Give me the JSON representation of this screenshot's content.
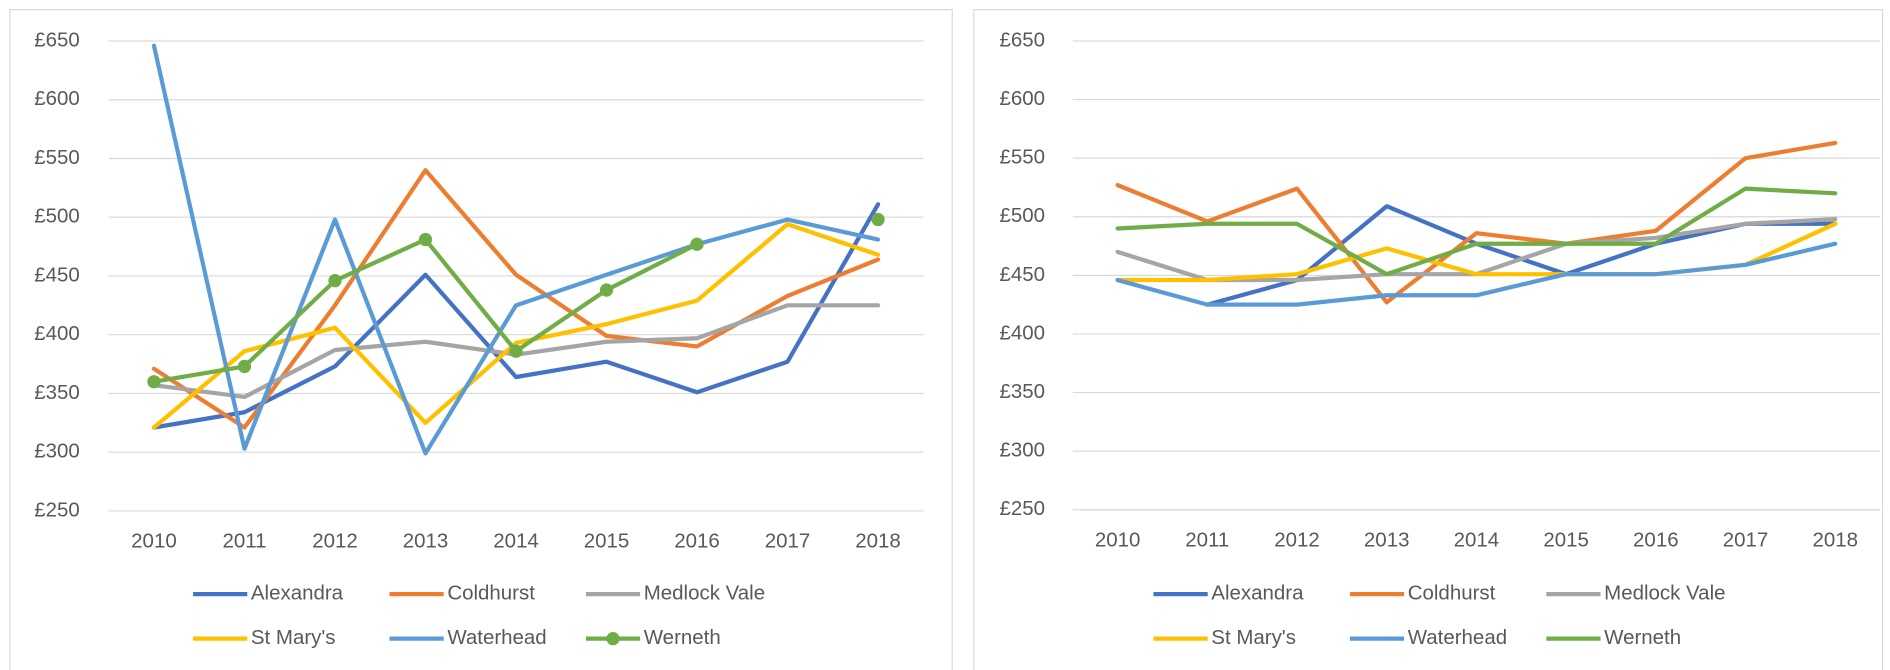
{
  "chart_data": [
    {
      "type": "line",
      "categories": [
        "2010",
        "2011",
        "2012",
        "2013",
        "2014",
        "2015",
        "2016",
        "2017",
        "2018"
      ],
      "ylim": [
        250,
        650
      ],
      "yticks": [
        {
          "value": 250,
          "label": "£250"
        },
        {
          "value": 300,
          "label": "£300"
        },
        {
          "value": 350,
          "label": "£350"
        },
        {
          "value": 400,
          "label": "£400"
        },
        {
          "value": 450,
          "label": "£450"
        },
        {
          "value": 500,
          "label": "£500"
        },
        {
          "value": 550,
          "label": "£550"
        },
        {
          "value": 600,
          "label": "£600"
        },
        {
          "value": 650,
          "label": "£650"
        }
      ],
      "grid": true,
      "series": [
        {
          "name": "Alexandra",
          "color": "#4472c4",
          "markers": false,
          "values": [
            321,
            334,
            373,
            451,
            364,
            377,
            351,
            377,
            511
          ]
        },
        {
          "name": "Coldhurst",
          "color": "#ed7d31",
          "markers": false,
          "values": [
            371,
            321,
            425,
            540,
            451,
            399,
            390,
            433,
            464
          ]
        },
        {
          "name": "Medlock Vale",
          "color": "#a5a5a5",
          "markers": false,
          "values": [
            357,
            347,
            387,
            394,
            383,
            394,
            397,
            425,
            425
          ]
        },
        {
          "name": "St Mary's",
          "color": "#ffc000",
          "markers": false,
          "values": [
            321,
            386,
            406,
            325,
            393,
            409,
            429,
            494,
            468
          ]
        },
        {
          "name": "Waterhead",
          "color": "#5b9bd5",
          "markers": false,
          "values": [
            646,
            303,
            498,
            299,
            425,
            451,
            477,
            498,
            481
          ]
        },
        {
          "name": "Werneth",
          "color": "#70ad47",
          "markers": true,
          "values": [
            360,
            373,
            446,
            481,
            386,
            438,
            477,
            null,
            498
          ]
        }
      ]
    },
    {
      "type": "line",
      "categories": [
        "2010",
        "2011",
        "2012",
        "2013",
        "2014",
        "2015",
        "2016",
        "2017",
        "2018"
      ],
      "ylim": [
        250,
        650
      ],
      "yticks": [
        {
          "value": 250,
          "label": "£250"
        },
        {
          "value": 300,
          "label": "£300"
        },
        {
          "value": 350,
          "label": "£350"
        },
        {
          "value": 400,
          "label": "£400"
        },
        {
          "value": 450,
          "label": "£450"
        },
        {
          "value": 500,
          "label": "£500"
        },
        {
          "value": 550,
          "label": "£550"
        },
        {
          "value": 600,
          "label": "£600"
        },
        {
          "value": 650,
          "label": "£650"
        }
      ],
      "grid": true,
      "series": [
        {
          "name": "Alexandra",
          "color": "#4472c4",
          "markers": false,
          "values": [
            null,
            425,
            446,
            509,
            477,
            451,
            477,
            494,
            494
          ]
        },
        {
          "name": "Coldhurst",
          "color": "#ed7d31",
          "markers": false,
          "values": [
            527,
            496,
            524,
            427,
            486,
            477,
            488,
            550,
            563
          ]
        },
        {
          "name": "Medlock Vale",
          "color": "#a5a5a5",
          "markers": false,
          "values": [
            470,
            446,
            446,
            451,
            451,
            477,
            482,
            494,
            498
          ]
        },
        {
          "name": "St Mary's",
          "color": "#ffc000",
          "markers": false,
          "values": [
            446,
            446,
            451,
            473,
            451,
            451,
            451,
            459,
            494
          ]
        },
        {
          "name": "Waterhead",
          "color": "#5b9bd5",
          "markers": false,
          "values": [
            446,
            425,
            425,
            433,
            433,
            451,
            451,
            459,
            477
          ]
        },
        {
          "name": "Werneth",
          "color": "#70ad47",
          "markers": false,
          "values": [
            490,
            494,
            494,
            451,
            477,
            477,
            477,
            524,
            520
          ]
        }
      ]
    }
  ]
}
